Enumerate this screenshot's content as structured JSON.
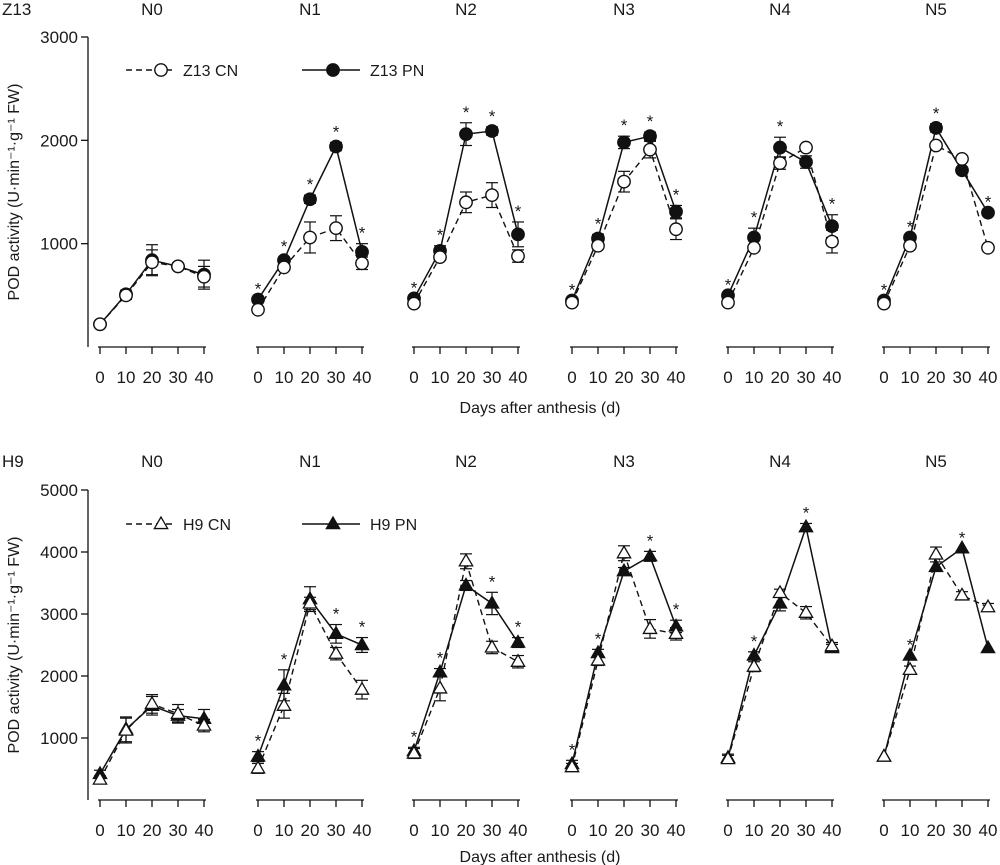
{
  "chart_data": [
    {
      "type": "line",
      "panel_label": "Z13",
      "xlabel": "Days after anthesis (d)",
      "ylabel": "POD activity (U·min⁻¹·g⁻¹ FW)",
      "ylim": [
        0,
        3000
      ],
      "yticks": [
        1000,
        2000,
        3000
      ],
      "x": [
        0,
        10,
        20,
        30,
        40
      ],
      "x_tick_labels": [
        "0",
        "10",
        "20",
        "30",
        "40"
      ],
      "marker_shape": "circle",
      "legend": {
        "position": "top-left",
        "entries": [
          "Z13 CN",
          "Z13 PN"
        ]
      },
      "groups": [
        {
          "name": "N0",
          "CN": [
            220,
            500,
            820,
            780,
            680
          ],
          "PN": [
            220,
            510,
            840,
            780,
            700
          ],
          "CN_err": [
            0,
            40,
            120,
            0,
            100
          ],
          "PN_err": [
            0,
            40,
            150,
            0,
            140
          ],
          "sig": [
            false,
            false,
            false,
            false,
            false
          ]
        },
        {
          "name": "N1",
          "CN": [
            360,
            770,
            1060,
            1150,
            810
          ],
          "PN": [
            460,
            840,
            1430,
            1940,
            920
          ],
          "CN_err": [
            0,
            0,
            150,
            120,
            60
          ],
          "PN_err": [
            0,
            30,
            40,
            40,
            80
          ],
          "sig": [
            true,
            true,
            true,
            true,
            true
          ]
        },
        {
          "name": "N2",
          "CN": [
            420,
            870,
            1400,
            1470,
            880
          ],
          "PN": [
            470,
            930,
            2060,
            2090,
            1090
          ],
          "CN_err": [
            0,
            0,
            100,
            120,
            60
          ],
          "PN_err": [
            0,
            50,
            110,
            40,
            120
          ],
          "sig": [
            true,
            true,
            true,
            true,
            true
          ]
        },
        {
          "name": "N3",
          "CN": [
            430,
            980,
            1600,
            1910,
            1140
          ],
          "PN": [
            450,
            1050,
            1980,
            2040,
            1310
          ],
          "CN_err": [
            0,
            0,
            100,
            80,
            100
          ],
          "PN_err": [
            0,
            40,
            60,
            40,
            60
          ],
          "sig": [
            true,
            true,
            true,
            true,
            true
          ]
        },
        {
          "name": "N4",
          "CN": [
            430,
            960,
            1780,
            1930,
            1020
          ],
          "PN": [
            500,
            1060,
            1930,
            1790,
            1170
          ],
          "CN_err": [
            0,
            0,
            60,
            0,
            110
          ],
          "PN_err": [
            0,
            90,
            100,
            60,
            110
          ],
          "sig": [
            true,
            true,
            true,
            false,
            true
          ]
        },
        {
          "name": "N5",
          "CN": [
            420,
            980,
            1950,
            1820,
            960
          ],
          "PN": [
            450,
            1060,
            2120,
            1710,
            1300
          ],
          "CN_err": [
            0,
            0,
            0,
            0,
            0
          ],
          "PN_err": [
            0,
            0,
            40,
            0,
            0
          ],
          "sig": [
            true,
            true,
            true,
            false,
            true
          ]
        }
      ]
    },
    {
      "type": "line",
      "panel_label": "H9",
      "xlabel": "Days after anthesis (d)",
      "ylabel": "POD activity (U·min⁻¹·g⁻¹ FW)",
      "ylim": [
        0,
        5000
      ],
      "yticks": [
        1000,
        2000,
        3000,
        4000,
        5000
      ],
      "x": [
        0,
        10,
        20,
        30,
        40
      ],
      "x_tick_labels": [
        "0",
        "10",
        "20",
        "30",
        "40"
      ],
      "marker_shape": "triangle",
      "legend": {
        "position": "top-left",
        "entries": [
          "H9 CN",
          "H9 PN"
        ]
      },
      "groups": [
        {
          "name": "N0",
          "CN": [
            330,
            1120,
            1550,
            1390,
            1200
          ],
          "PN": [
            420,
            1140,
            1520,
            1360,
            1310
          ],
          "CN_err": [
            60,
            200,
            150,
            150,
            100
          ],
          "PN_err": [
            60,
            200,
            150,
            100,
            150
          ],
          "sig": [
            false,
            false,
            false,
            false,
            false
          ]
        },
        {
          "name": "N1",
          "CN": [
            510,
            1520,
            3170,
            2360,
            1780
          ],
          "PN": [
            700,
            1850,
            3240,
            2680,
            2500
          ],
          "CN_err": [
            80,
            200,
            100,
            100,
            150
          ],
          "PN_err": [
            80,
            250,
            200,
            150,
            120
          ],
          "sig": [
            true,
            true,
            false,
            true,
            true
          ]
        },
        {
          "name": "N2",
          "CN": [
            750,
            1800,
            3850,
            2460,
            2230
          ],
          "PN": [
            790,
            2060,
            3460,
            3170,
            2540
          ],
          "CN_err": [
            80,
            200,
            120,
            100,
            100
          ],
          "PN_err": [
            60,
            60,
            80,
            180,
            80
          ],
          "sig": [
            true,
            true,
            false,
            true,
            true
          ]
        },
        {
          "name": "N3",
          "CN": [
            530,
            2250,
            3980,
            2760,
            2680
          ],
          "PN": [
            580,
            2370,
            3690,
            3930,
            2800
          ],
          "CN_err": [
            60,
            80,
            120,
            150,
            100
          ],
          "PN_err": [
            60,
            60,
            60,
            80,
            100
          ],
          "sig": [
            true,
            true,
            false,
            true,
            true
          ]
        },
        {
          "name": "N4",
          "CN": [
            660,
            2150,
            3340,
            3020,
            2480
          ],
          "PN": [
            680,
            2330,
            3170,
            4400,
            2450
          ],
          "CN_err": [
            60,
            80,
            60,
            100,
            60
          ],
          "PN_err": [
            60,
            60,
            120,
            60,
            60
          ],
          "sig": [
            false,
            true,
            false,
            true,
            false
          ]
        },
        {
          "name": "N5",
          "CN": [
            700,
            2100,
            3960,
            3300,
            3110
          ],
          "PN": [
            700,
            2330,
            3760,
            4060,
            2450
          ],
          "CN_err": [
            0,
            60,
            120,
            60,
            60
          ],
          "PN_err": [
            0,
            0,
            0,
            0,
            0
          ],
          "sig": [
            false,
            true,
            false,
            true,
            false
          ]
        }
      ]
    }
  ]
}
